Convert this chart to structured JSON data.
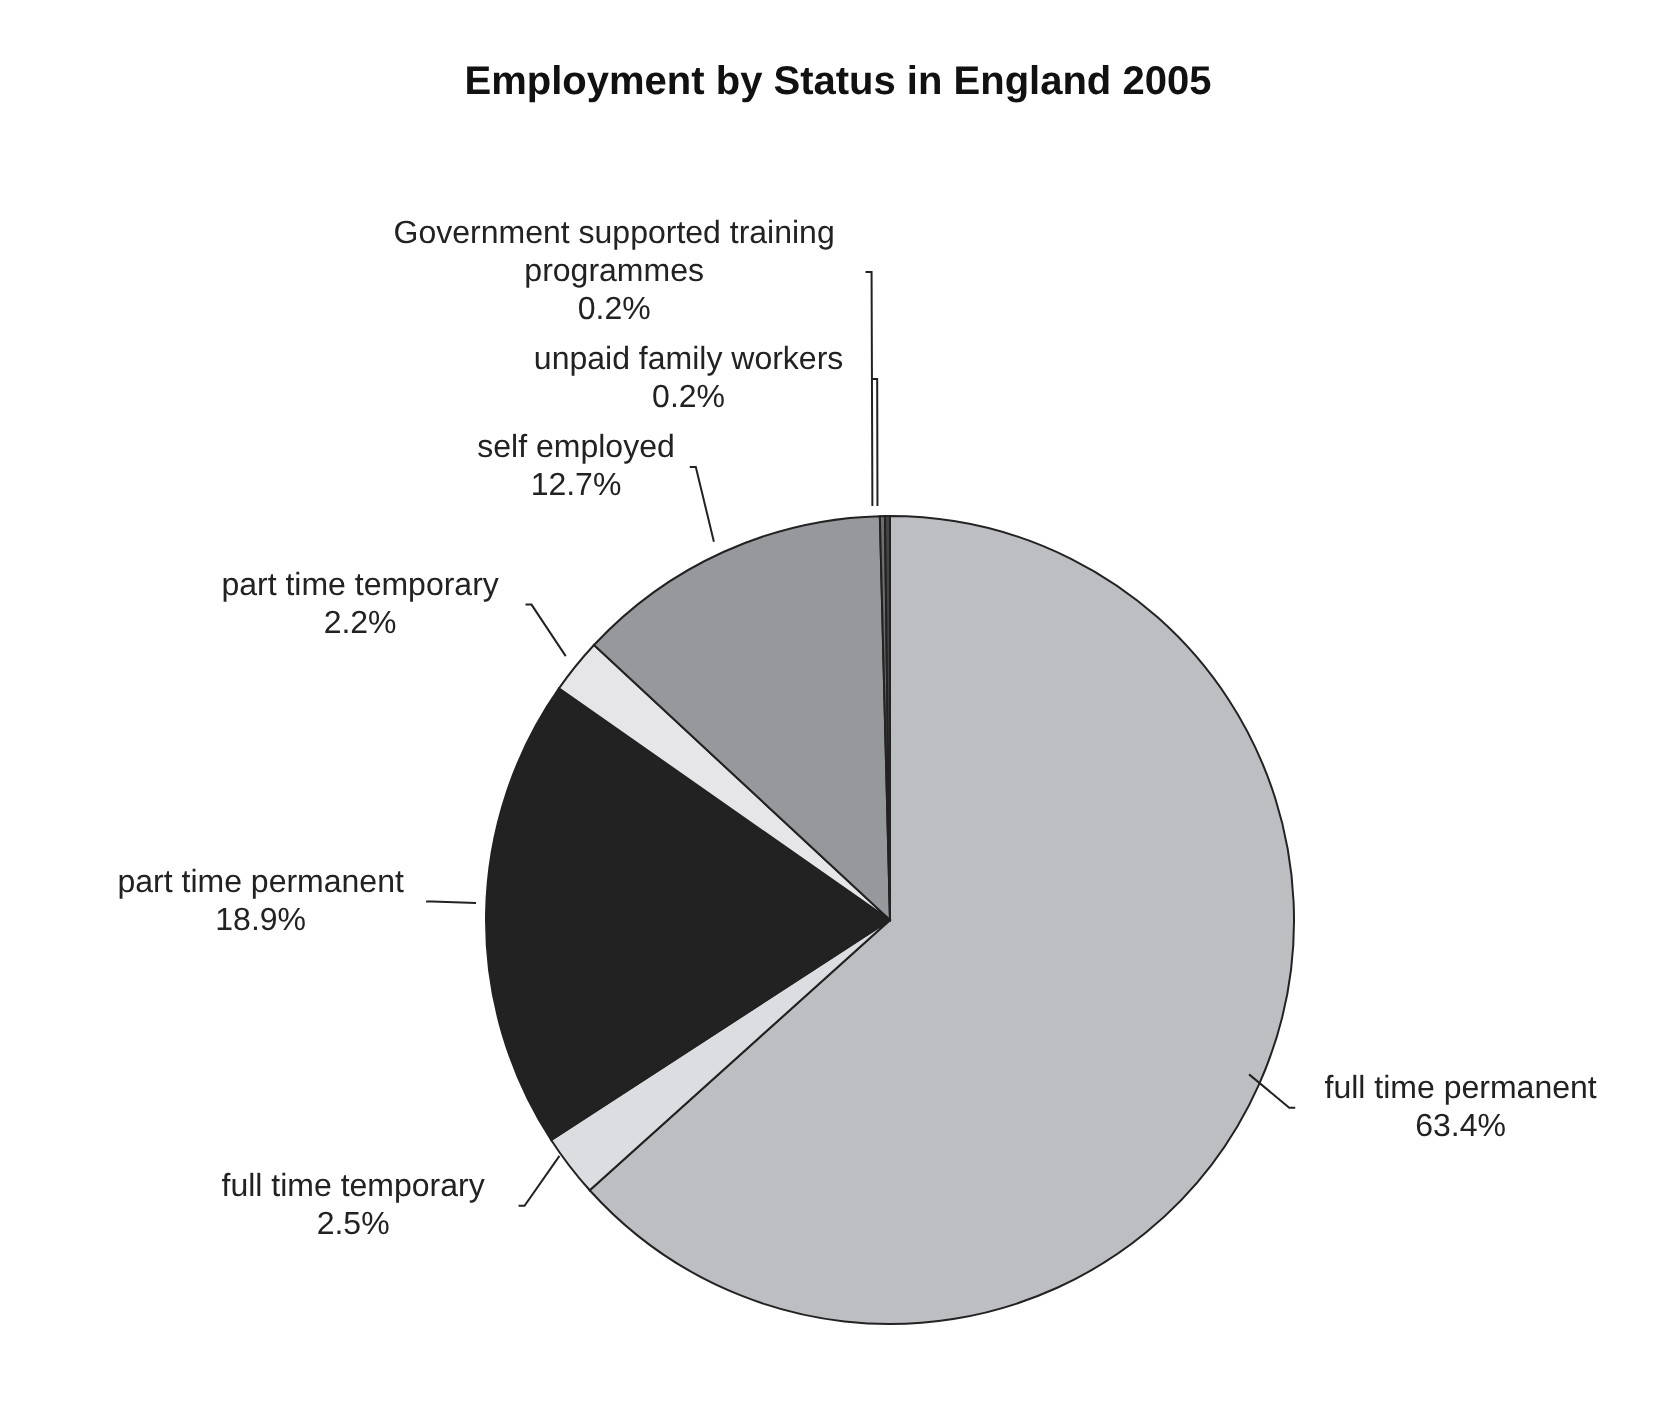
{
  "chart_data": {
    "type": "pie",
    "title": "Employment by Status in England 2005",
    "categories": [
      "full time permanent",
      "full time temporary",
      "part time permanent",
      "part time temporary",
      "self employed",
      "Government supported training programmes",
      "unpaid family workers"
    ],
    "values": [
      63.4,
      2.5,
      18.9,
      2.2,
      12.7,
      0.2,
      0.2
    ],
    "value_labels": [
      "63.4%",
      "2.5%",
      "18.9%",
      "2.2%",
      "12.7%",
      "0.2%",
      "0.2%"
    ],
    "colors": [
      "#bdbec2",
      "#dcdde0",
      "#222222",
      "#e6e6e8",
      "#97989c",
      "#6e6e70",
      "#444446"
    ],
    "legend": false
  }
}
